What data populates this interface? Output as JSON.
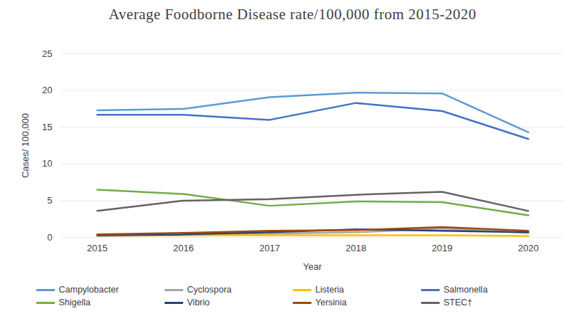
{
  "chart_data": {
    "type": "line",
    "title": "Average Foodborne Disease rate/100,000 from 2015-2020",
    "x_label": "Year",
    "y_label": "Cases/ 100,000",
    "categories": [
      "2015",
      "2016",
      "2017",
      "2018",
      "2019",
      "2020"
    ],
    "series": [
      {
        "name": "Campylobacter",
        "color": "#5b9bd5",
        "values": [
          17.3,
          17.5,
          19.1,
          19.7,
          19.6,
          14.3
        ]
      },
      {
        "name": "Cyclospora",
        "color": "#a5a5a5",
        "values": [
          0.2,
          0.3,
          0.5,
          0.7,
          1.2,
          0.6
        ]
      },
      {
        "name": "Listeria",
        "color": "#ffc000",
        "values": [
          0.3,
          0.3,
          0.3,
          0.3,
          0.3,
          0.2
        ]
      },
      {
        "name": "Salmonella",
        "color": "#4472c4",
        "values": [
          16.7,
          16.7,
          16.0,
          18.3,
          17.2,
          13.4
        ]
      },
      {
        "name": "Shigella",
        "color": "#70ad47",
        "values": [
          6.5,
          5.9,
          4.3,
          4.9,
          4.8,
          3.0
        ]
      },
      {
        "name": "Vibrio",
        "color": "#264478",
        "values": [
          0.3,
          0.4,
          0.7,
          1.1,
          0.9,
          0.7
        ]
      },
      {
        "name": "Yersinia",
        "color": "#9e480e",
        "values": [
          0.4,
          0.6,
          0.9,
          1.0,
          1.4,
          0.9
        ]
      },
      {
        "name": "STEC†",
        "color": "#636363",
        "values": [
          3.6,
          5.0,
          5.2,
          5.8,
          6.2,
          3.6
        ]
      }
    ],
    "ylim": [
      0,
      25
    ],
    "yticks": [
      0,
      5,
      10,
      15,
      20,
      25
    ],
    "grid": true,
    "legend": "bottom"
  }
}
